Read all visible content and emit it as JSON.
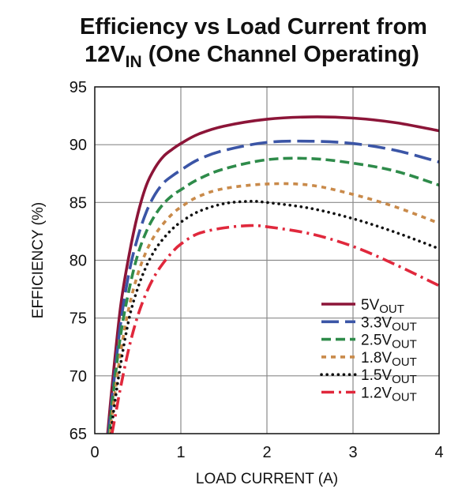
{
  "chart_data": {
    "type": "line",
    "title_line1": "Efficiency vs Load Current from",
    "title_line2_main": "12V",
    "title_line2_sub": "IN",
    "title_line2_rest": " (One Channel Operating)",
    "xlabel": "LOAD CURRENT (A)",
    "ylabel": "EFFICIENCY (%)",
    "xlim": [
      0,
      4
    ],
    "ylim": [
      65,
      95
    ],
    "xticks": [
      "0",
      "1",
      "2",
      "3",
      "4"
    ],
    "yticks": [
      "65",
      "70",
      "75",
      "80",
      "85",
      "90",
      "95"
    ],
    "grid": true,
    "legend_position": "bottom-right",
    "series": [
      {
        "name_main": "5V",
        "name_sub": "OUT",
        "color": "#8c1538",
        "dash": "solid",
        "x": [
          0.15,
          0.2,
          0.3,
          0.4,
          0.5,
          0.6,
          0.7,
          0.8,
          0.9,
          1.0,
          1.2,
          1.5,
          2.0,
          2.5,
          3.0,
          3.5,
          4.0
        ],
        "y": [
          65.0,
          69.0,
          76.0,
          80.5,
          84.0,
          86.5,
          88.0,
          89.0,
          89.6,
          90.1,
          90.9,
          91.6,
          92.2,
          92.4,
          92.3,
          91.9,
          91.2
        ]
      },
      {
        "name_main": "3.3V",
        "name_sub": "OUT",
        "color": "#3b55a6",
        "dash": "longdash",
        "x": [
          0.16,
          0.2,
          0.3,
          0.4,
          0.5,
          0.6,
          0.7,
          0.8,
          0.9,
          1.0,
          1.2,
          1.5,
          2.0,
          2.5,
          3.0,
          3.5,
          4.0
        ],
        "y": [
          65.0,
          68.0,
          74.5,
          79.0,
          82.0,
          84.2,
          85.7,
          86.7,
          87.3,
          87.8,
          88.7,
          89.5,
          90.2,
          90.3,
          90.1,
          89.5,
          88.5
        ]
      },
      {
        "name_main": "2.5V",
        "name_sub": "OUT",
        "color": "#2e8b4a",
        "dash": "dash",
        "x": [
          0.17,
          0.2,
          0.3,
          0.4,
          0.5,
          0.6,
          0.7,
          0.8,
          0.9,
          1.0,
          1.2,
          1.5,
          2.0,
          2.5,
          3.0,
          3.5,
          4.0
        ],
        "y": [
          65.0,
          67.5,
          73.5,
          77.5,
          80.5,
          82.5,
          83.9,
          84.9,
          85.6,
          86.1,
          87.0,
          87.9,
          88.7,
          88.8,
          88.4,
          87.7,
          86.5
        ]
      },
      {
        "name_main": "1.8V",
        "name_sub": "OUT",
        "color": "#c98a4a",
        "dash": "shortdash",
        "x": [
          0.18,
          0.2,
          0.3,
          0.4,
          0.5,
          0.6,
          0.7,
          0.8,
          0.9,
          1.0,
          1.2,
          1.5,
          2.0,
          2.5,
          3.0,
          3.5,
          4.0
        ],
        "y": [
          65.0,
          66.5,
          72.0,
          76.0,
          78.8,
          80.8,
          82.2,
          83.2,
          84.0,
          84.6,
          85.5,
          86.2,
          86.6,
          86.5,
          85.7,
          84.6,
          83.2
        ]
      },
      {
        "name_main": "1.5V",
        "name_sub": "OUT",
        "color": "#111111",
        "dash": "dot",
        "x": [
          0.19,
          0.22,
          0.3,
          0.4,
          0.5,
          0.6,
          0.7,
          0.8,
          0.9,
          1.0,
          1.2,
          1.5,
          1.8,
          2.0,
          2.5,
          3.0,
          3.5,
          4.0
        ],
        "y": [
          65.0,
          67.0,
          71.0,
          75.0,
          77.6,
          79.5,
          80.9,
          81.9,
          82.7,
          83.3,
          84.2,
          84.9,
          85.1,
          85.0,
          84.5,
          83.6,
          82.4,
          81.0
        ]
      },
      {
        "name_main": "1.2V",
        "name_sub": "OUT",
        "color": "#e0283c",
        "dash": "dashdot",
        "x": [
          0.2,
          0.25,
          0.3,
          0.4,
          0.5,
          0.6,
          0.7,
          0.8,
          0.9,
          1.0,
          1.2,
          1.5,
          1.8,
          2.0,
          2.5,
          3.0,
          3.5,
          4.0
        ],
        "y": [
          65.0,
          67.0,
          69.0,
          72.5,
          75.2,
          77.2,
          78.7,
          79.8,
          80.7,
          81.4,
          82.3,
          82.8,
          83.0,
          82.9,
          82.3,
          81.2,
          79.6,
          77.8
        ]
      }
    ]
  }
}
